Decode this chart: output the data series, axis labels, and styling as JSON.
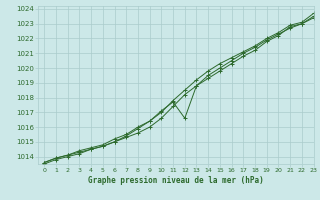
{
  "title": "Graphe pression niveau de la mer (hPa)",
  "xlim": [
    -0.5,
    23
  ],
  "ylim": [
    1013.5,
    1024.2
  ],
  "yticks": [
    1014,
    1015,
    1016,
    1017,
    1018,
    1019,
    1020,
    1021,
    1022,
    1023,
    1024
  ],
  "xticks": [
    0,
    1,
    2,
    3,
    4,
    5,
    6,
    7,
    8,
    9,
    10,
    11,
    12,
    13,
    14,
    15,
    16,
    17,
    18,
    19,
    20,
    21,
    22,
    23
  ],
  "background_color": "#cce8e8",
  "grid_color": "#aacccc",
  "line_color": "#2d6a2d",
  "marker_color": "#2d6a2d",
  "text_color": "#2d6a2d",
  "hours": [
    0,
    1,
    2,
    3,
    4,
    5,
    6,
    7,
    8,
    9,
    10,
    11,
    12,
    13,
    14,
    15,
    16,
    17,
    18,
    19,
    20,
    21,
    22,
    23
  ],
  "line1": [
    1013.6,
    1013.9,
    1014.1,
    1014.3,
    1014.5,
    1014.7,
    1015.0,
    1015.3,
    1015.6,
    1016.0,
    1016.6,
    1017.4,
    1018.2,
    1018.8,
    1019.3,
    1019.8,
    1020.3,
    1020.8,
    1021.2,
    1021.8,
    1022.2,
    1022.8,
    1023.0,
    1023.5
  ],
  "line2": [
    1013.6,
    1013.9,
    1014.1,
    1014.4,
    1014.6,
    1014.8,
    1015.2,
    1015.5,
    1016.0,
    1016.4,
    1017.0,
    1017.8,
    1018.5,
    1019.2,
    1019.8,
    1020.3,
    1020.7,
    1021.1,
    1021.5,
    1022.0,
    1022.4,
    1022.9,
    1023.1,
    1023.7
  ],
  "line3": [
    1013.5,
    1013.8,
    1014.0,
    1014.2,
    1014.5,
    1014.7,
    1015.0,
    1015.4,
    1015.9,
    1016.4,
    1017.1,
    1017.7,
    1016.6,
    1018.8,
    1019.5,
    1020.0,
    1020.5,
    1021.0,
    1021.4,
    1021.9,
    1022.3,
    1022.7,
    1023.0,
    1023.4
  ]
}
